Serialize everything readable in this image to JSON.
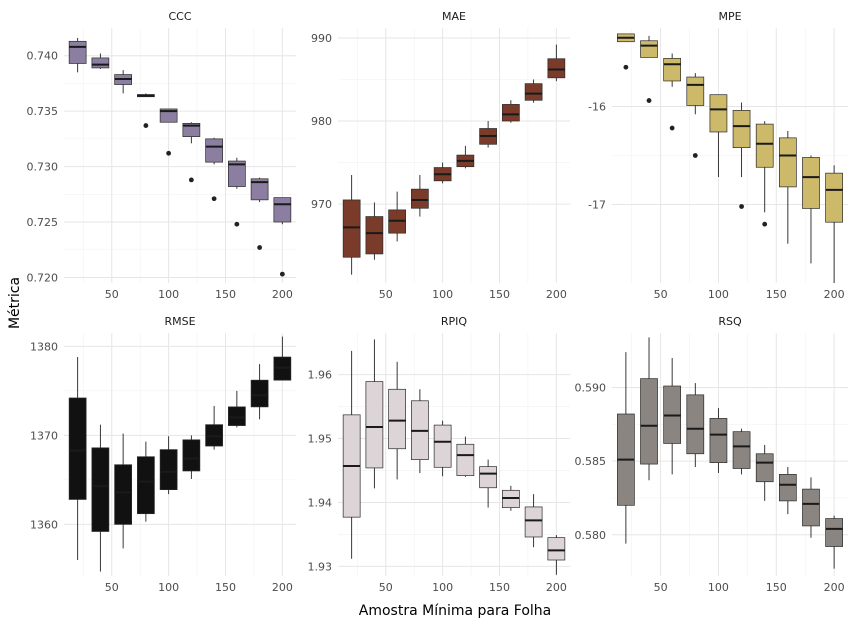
{
  "figure": {
    "xlabel": "Amostra Mínima para Folha",
    "ylabel": "Métrica"
  },
  "chart_data": [
    {
      "type": "boxplot",
      "title": "CCC",
      "color": "#8c7ea0",
      "x": [
        20,
        40,
        60,
        80,
        100,
        120,
        140,
        160,
        180,
        200
      ],
      "xticks": [
        50,
        100,
        150,
        200
      ],
      "yticks": [
        0.72,
        0.725,
        0.73,
        0.735,
        0.74
      ],
      "ytick_labels": [
        "0.720",
        "0.725",
        "0.730",
        "0.735",
        "0.740"
      ],
      "ylim": [
        0.7195,
        0.7425
      ],
      "boxes": [
        {
          "min": 0.7385,
          "q1": 0.7393,
          "median": 0.7408,
          "q3": 0.7413,
          "max": 0.7416,
          "outliers": []
        },
        {
          "min": 0.7388,
          "q1": 0.7389,
          "median": 0.7392,
          "q3": 0.7398,
          "max": 0.7402,
          "outliers": []
        },
        {
          "min": 0.7366,
          "q1": 0.7374,
          "median": 0.7379,
          "q3": 0.7383,
          "max": 0.7387,
          "outliers": []
        },
        {
          "min": 0.7363,
          "q1": 0.7363,
          "median": 0.7364,
          "q3": 0.7365,
          "max": 0.7366,
          "outliers": [
            0.7337
          ]
        },
        {
          "min": 0.734,
          "q1": 0.734,
          "median": 0.735,
          "q3": 0.7352,
          "max": 0.7352,
          "outliers": [
            0.7312
          ]
        },
        {
          "min": 0.7321,
          "q1": 0.7327,
          "median": 0.7337,
          "q3": 0.7339,
          "max": 0.734,
          "outliers": [
            0.7288
          ]
        },
        {
          "min": 0.7302,
          "q1": 0.7304,
          "median": 0.7318,
          "q3": 0.7325,
          "max": 0.7326,
          "outliers": [
            0.7271
          ]
        },
        {
          "min": 0.728,
          "q1": 0.7282,
          "median": 0.7302,
          "q3": 0.7305,
          "max": 0.7308,
          "outliers": [
            0.7248
          ]
        },
        {
          "min": 0.7268,
          "q1": 0.727,
          "median": 0.7286,
          "q3": 0.7289,
          "max": 0.729,
          "outliers": [
            0.7227
          ]
        },
        {
          "min": 0.7248,
          "q1": 0.725,
          "median": 0.7266,
          "q3": 0.7272,
          "max": 0.7272,
          "outliers": [
            0.7203
          ]
        }
      ]
    },
    {
      "type": "boxplot",
      "title": "MAE",
      "color": "#7a3b2a",
      "x": [
        20,
        40,
        60,
        80,
        100,
        120,
        140,
        160,
        180,
        200
      ],
      "xticks": [
        50,
        100,
        150,
        200
      ],
      "yticks": [
        970,
        980,
        990
      ],
      "ytick_labels": [
        "970",
        "980",
        "990"
      ],
      "ylim": [
        960.5,
        991.2
      ],
      "boxes": [
        {
          "min": 961.5,
          "q1": 963.6,
          "median": 967.2,
          "q3": 970.5,
          "max": 973.5,
          "outliers": []
        },
        {
          "min": 963.3,
          "q1": 964.0,
          "median": 966.5,
          "q3": 968.5,
          "max": 970.2,
          "outliers": []
        },
        {
          "min": 965.5,
          "q1": 966.5,
          "median": 968.0,
          "q3": 969.3,
          "max": 971.5,
          "outliers": []
        },
        {
          "min": 968.5,
          "q1": 969.5,
          "median": 970.5,
          "q3": 971.8,
          "max": 973.5,
          "outliers": []
        },
        {
          "min": 972.5,
          "q1": 972.8,
          "median": 973.6,
          "q3": 974.4,
          "max": 975.0,
          "outliers": []
        },
        {
          "min": 974.3,
          "q1": 974.5,
          "median": 975.2,
          "q3": 975.9,
          "max": 977.0,
          "outliers": []
        },
        {
          "min": 976.8,
          "q1": 977.2,
          "median": 978.2,
          "q3": 979.1,
          "max": 980.0,
          "outliers": []
        },
        {
          "min": 979.8,
          "q1": 980.0,
          "median": 980.8,
          "q3": 982.0,
          "max": 982.5,
          "outliers": []
        },
        {
          "min": 982.2,
          "q1": 982.5,
          "median": 983.3,
          "q3": 984.5,
          "max": 985.0,
          "outliers": []
        },
        {
          "min": 984.8,
          "q1": 985.2,
          "median": 986.2,
          "q3": 987.5,
          "max": 989.2,
          "outliers": []
        }
      ]
    },
    {
      "type": "boxplot",
      "title": "MPE",
      "color": "#cdb96a",
      "x": [
        20,
        40,
        60,
        80,
        100,
        120,
        140,
        160,
        180,
        200
      ],
      "xticks": [
        50,
        100,
        150,
        200
      ],
      "yticks": [
        -17,
        -16
      ],
      "ytick_labels": [
        "-17",
        "-16"
      ],
      "ylim": [
        -17.8,
        -15.2
      ],
      "boxes": [
        {
          "min": -15.34,
          "q1": -15.34,
          "median": -15.3,
          "q3": -15.26,
          "max": -15.26,
          "outliers": [
            -15.6
          ]
        },
        {
          "min": -15.5,
          "q1": -15.5,
          "median": -15.38,
          "q3": -15.33,
          "max": -15.28,
          "outliers": [
            -15.94
          ]
        },
        {
          "min": -15.8,
          "q1": -15.74,
          "median": -15.57,
          "q3": -15.51,
          "max": -15.46,
          "outliers": [
            -16.22
          ]
        },
        {
          "min": -16.08,
          "q1": -15.99,
          "median": -15.78,
          "q3": -15.7,
          "max": -15.66,
          "outliers": [
            -16.5
          ]
        },
        {
          "min": -16.72,
          "q1": -16.26,
          "median": -16.03,
          "q3": -15.88,
          "max": -15.88,
          "outliers": []
        },
        {
          "min": -16.72,
          "q1": -16.42,
          "median": -16.2,
          "q3": -16.04,
          "max": -15.96,
          "outliers": [
            -17.02
          ]
        },
        {
          "min": -17.08,
          "q1": -16.62,
          "median": -16.38,
          "q3": -16.18,
          "max": -16.15,
          "outliers": [
            -17.2
          ]
        },
        {
          "min": -17.4,
          "q1": -16.82,
          "median": -16.5,
          "q3": -16.32,
          "max": -16.25,
          "outliers": []
        },
        {
          "min": -17.6,
          "q1": -17.04,
          "median": -16.72,
          "q3": -16.52,
          "max": -16.5,
          "outliers": []
        },
        {
          "min": -17.8,
          "q1": -17.18,
          "median": -16.85,
          "q3": -16.68,
          "max": -16.6,
          "outliers": []
        }
      ]
    },
    {
      "type": "boxplot",
      "title": "RMSE",
      "color": "#111111",
      "x": [
        20,
        40,
        60,
        80,
        100,
        120,
        140,
        160,
        180,
        200
      ],
      "xticks": [
        50,
        100,
        150,
        200
      ],
      "yticks": [
        1360,
        1370,
        1380
      ],
      "ytick_labels": [
        "1360",
        "1370",
        "1380"
      ],
      "ylim": [
        1354.2,
        1381.5
      ],
      "boxes": [
        {
          "min": 1356.0,
          "q1": 1362.8,
          "median": 1368.3,
          "q3": 1374.2,
          "max": 1378.8,
          "outliers": []
        },
        {
          "min": 1354.7,
          "q1": 1359.2,
          "median": 1364.3,
          "q3": 1368.6,
          "max": 1371.2,
          "outliers": []
        },
        {
          "min": 1357.3,
          "q1": 1360.0,
          "median": 1363.6,
          "q3": 1366.7,
          "max": 1370.2,
          "outliers": []
        },
        {
          "min": 1360.3,
          "q1": 1361.2,
          "median": 1364.8,
          "q3": 1367.6,
          "max": 1369.3,
          "outliers": []
        },
        {
          "min": 1363.4,
          "q1": 1363.9,
          "median": 1365.9,
          "q3": 1368.4,
          "max": 1369.9,
          "outliers": []
        },
        {
          "min": 1365.1,
          "q1": 1366.0,
          "median": 1367.4,
          "q3": 1369.5,
          "max": 1370.0,
          "outliers": []
        },
        {
          "min": 1368.4,
          "q1": 1368.8,
          "median": 1369.9,
          "q3": 1371.2,
          "max": 1373.3,
          "outliers": []
        },
        {
          "min": 1370.9,
          "q1": 1371.1,
          "median": 1372.0,
          "q3": 1373.2,
          "max": 1375.0,
          "outliers": []
        },
        {
          "min": 1371.8,
          "q1": 1373.2,
          "median": 1374.5,
          "q3": 1376.2,
          "max": 1378.0,
          "outliers": []
        },
        {
          "min": 1376.2,
          "q1": 1376.2,
          "median": 1377.6,
          "q3": 1378.8,
          "max": 1381.1,
          "outliers": []
        }
      ]
    },
    {
      "type": "boxplot",
      "title": "RPIQ",
      "color": "#dcd4d7",
      "x": [
        20,
        40,
        60,
        80,
        100,
        120,
        140,
        160,
        180,
        200
      ],
      "xticks": [
        50,
        100,
        150,
        200
      ],
      "yticks": [
        1.93,
        1.94,
        1.95,
        1.96
      ],
      "ytick_labels": [
        "1.93",
        "1.94",
        "1.95",
        "1.96"
      ],
      "ylim": [
        1.9285,
        1.9665
      ],
      "boxes": [
        {
          "min": 1.9312,
          "q1": 1.9377,
          "median": 1.9457,
          "q3": 1.9537,
          "max": 1.9637,
          "outliers": []
        },
        {
          "min": 1.9422,
          "q1": 1.9454,
          "median": 1.9518,
          "q3": 1.9589,
          "max": 1.9655,
          "outliers": []
        },
        {
          "min": 1.9436,
          "q1": 1.9484,
          "median": 1.9528,
          "q3": 1.9577,
          "max": 1.962,
          "outliers": []
        },
        {
          "min": 1.9446,
          "q1": 1.9467,
          "median": 1.9512,
          "q3": 1.9559,
          "max": 1.9577,
          "outliers": []
        },
        {
          "min": 1.9441,
          "q1": 1.9455,
          "median": 1.9495,
          "q3": 1.9521,
          "max": 1.9528,
          "outliers": []
        },
        {
          "min": 1.944,
          "q1": 1.9442,
          "median": 1.9474,
          "q3": 1.9491,
          "max": 1.9503,
          "outliers": []
        },
        {
          "min": 1.9392,
          "q1": 1.9423,
          "median": 1.9445,
          "q3": 1.9456,
          "max": 1.9467,
          "outliers": []
        },
        {
          "min": 1.9387,
          "q1": 1.9392,
          "median": 1.9407,
          "q3": 1.9419,
          "max": 1.9426,
          "outliers": []
        },
        {
          "min": 1.933,
          "q1": 1.9346,
          "median": 1.9372,
          "q3": 1.9393,
          "max": 1.9413,
          "outliers": []
        },
        {
          "min": 1.9287,
          "q1": 1.931,
          "median": 1.9325,
          "q3": 1.9345,
          "max": 1.9349,
          "outliers": []
        }
      ]
    },
    {
      "type": "boxplot",
      "title": "RSQ",
      "color": "#8a8580",
      "x": [
        20,
        40,
        60,
        80,
        100,
        120,
        140,
        160,
        180,
        200
      ],
      "xticks": [
        50,
        100,
        150,
        200
      ],
      "yticks": [
        0.58,
        0.585,
        0.59
      ],
      "ytick_labels": [
        "0.580",
        "0.585",
        "0.590"
      ],
      "ylim": [
        0.5772,
        0.5937
      ],
      "boxes": [
        {
          "min": 0.5794,
          "q1": 0.582,
          "median": 0.5851,
          "q3": 0.5882,
          "max": 0.5924,
          "outliers": []
        },
        {
          "min": 0.5837,
          "q1": 0.5848,
          "median": 0.5874,
          "q3": 0.5906,
          "max": 0.5934,
          "outliers": []
        },
        {
          "min": 0.5841,
          "q1": 0.5862,
          "median": 0.5881,
          "q3": 0.5901,
          "max": 0.592,
          "outliers": []
        },
        {
          "min": 0.5846,
          "q1": 0.5855,
          "median": 0.5872,
          "q3": 0.5895,
          "max": 0.5903,
          "outliers": []
        },
        {
          "min": 0.5842,
          "q1": 0.5849,
          "median": 0.5868,
          "q3": 0.5879,
          "max": 0.5886,
          "outliers": []
        },
        {
          "min": 0.5841,
          "q1": 0.5845,
          "median": 0.586,
          "q3": 0.587,
          "max": 0.5872,
          "outliers": []
        },
        {
          "min": 0.5823,
          "q1": 0.5836,
          "median": 0.5849,
          "q3": 0.5855,
          "max": 0.5861,
          "outliers": []
        },
        {
          "min": 0.5814,
          "q1": 0.5823,
          "median": 0.5834,
          "q3": 0.5841,
          "max": 0.5846,
          "outliers": []
        },
        {
          "min": 0.5798,
          "q1": 0.5806,
          "median": 0.5821,
          "q3": 0.5831,
          "max": 0.5839,
          "outliers": []
        },
        {
          "min": 0.5777,
          "q1": 0.5792,
          "median": 0.5804,
          "q3": 0.5811,
          "max": 0.5813,
          "outliers": []
        }
      ]
    }
  ]
}
